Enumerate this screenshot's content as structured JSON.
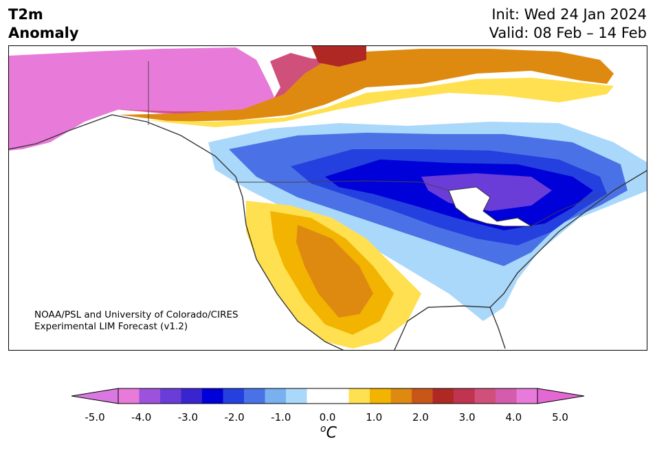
{
  "header": {
    "title_line1": "T2m",
    "title_line2": "Anomaly",
    "init_label": "Init: Wed 24 Jan 2024",
    "valid_label": "Valid: 08 Feb – 14 Feb"
  },
  "credit": {
    "line1": "NOAA/PSL and University of Colorado/CIRES",
    "line2": "Experimental LIM Forecast (v1.2)"
  },
  "colorbar": {
    "ticks": [
      "-5.0",
      "-4.0",
      "-3.0",
      "-2.0",
      "-1.0",
      "0.0",
      "1.0",
      "2.0",
      "3.0",
      "4.0",
      "5.0"
    ],
    "units_base": "C",
    "units_sup": "o",
    "colors": [
      "#e87ad9",
      "#9d52de",
      "#6a3cd8",
      "#3a24d0",
      "#0000d8",
      "#2440de",
      "#4a72e6",
      "#78b0f0",
      "#aad8fa",
      "#ffffff",
      "#ffffff",
      "#ffe050",
      "#f2b400",
      "#de8a10",
      "#c85618",
      "#b02824",
      "#c03450",
      "#d0507c",
      "#d45cac",
      "#e87ad9"
    ],
    "under_color": "#d878e0",
    "over_color": "#e468d4"
  }
}
